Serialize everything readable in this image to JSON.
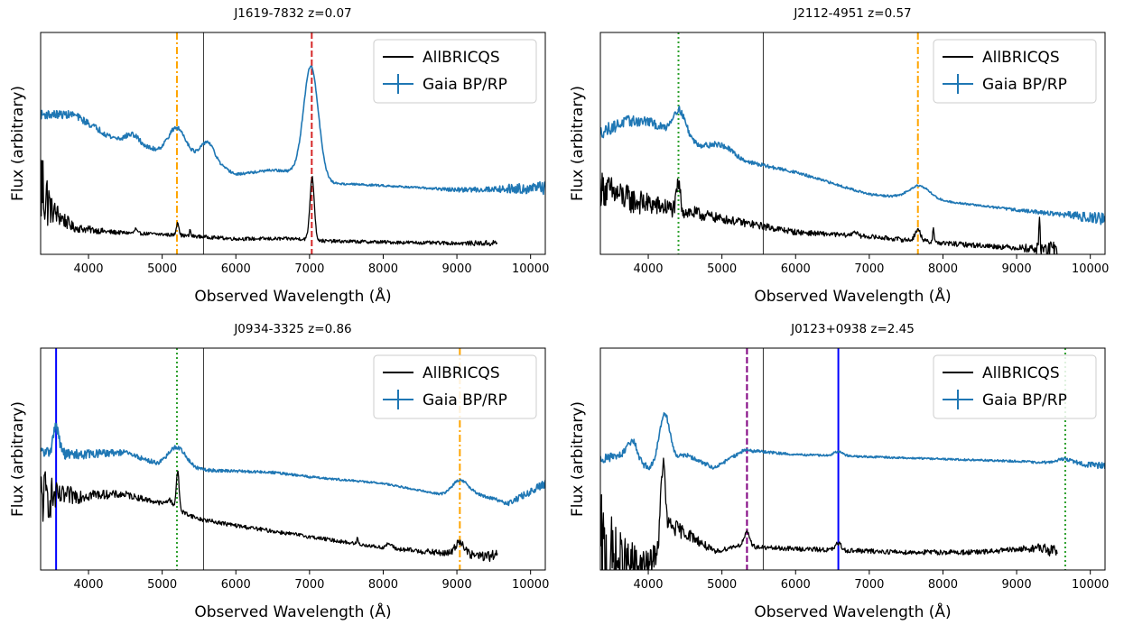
{
  "chart_data": [
    {
      "type": "line",
      "title": "J1619-7832 z=0.07",
      "xlabel": "Observed Wavelength (Å)",
      "ylabel": "Flux (arbitrary)",
      "xlim": [
        3350,
        10200
      ],
      "xticks": [
        4000,
        5000,
        6000,
        7000,
        8000,
        9000,
        10000
      ],
      "legend": {
        "position": "top-right",
        "entries": [
          "AllBRICQS",
          "Gaia BP/RP"
        ]
      },
      "series": [
        {
          "name": "AllBRICQS",
          "color": "#000000",
          "x_range": [
            3350,
            9550
          ],
          "continuum": [
            [
              3350,
              0.32
            ],
            [
              3500,
              0.2
            ],
            [
              3800,
              0.12
            ],
            [
              4300,
              0.1
            ],
            [
              5000,
              0.09
            ],
            [
              6000,
              0.07
            ],
            [
              6900,
              0.07
            ],
            [
              7200,
              0.06
            ],
            [
              8000,
              0.055
            ],
            [
              9000,
              0.05
            ],
            [
              9550,
              0.05
            ]
          ],
          "noise": [
            [
              3350,
              0.25
            ],
            [
              3500,
              0.06
            ],
            [
              3800,
              0.02
            ],
            [
              4500,
              0.008
            ],
            [
              9000,
              0.008
            ],
            [
              9550,
              0.015
            ]
          ],
          "features": [
            [
              5210,
              0.06,
              18
            ],
            [
              7035,
              0.28,
              30
            ],
            [
              4640,
              0.02,
              15
            ],
            [
              5380,
              0.03,
              8
            ]
          ]
        },
        {
          "name": "Gaia BP/RP",
          "color": "#1f77b4",
          "x_range": [
            3350,
            10200
          ],
          "continuum": [
            [
              3350,
              0.63
            ],
            [
              3800,
              0.63
            ],
            [
              4300,
              0.53
            ],
            [
              5000,
              0.46
            ],
            [
              5600,
              0.43
            ],
            [
              6000,
              0.36
            ],
            [
              6500,
              0.38
            ],
            [
              6800,
              0.37
            ],
            [
              7300,
              0.32
            ],
            [
              8000,
              0.31
            ],
            [
              9000,
              0.29
            ],
            [
              10200,
              0.3
            ]
          ],
          "noise": [
            [
              3350,
              0.02
            ],
            [
              4500,
              0.012
            ],
            [
              6000,
              0.006
            ],
            [
              8500,
              0.004
            ],
            [
              9500,
              0.015
            ],
            [
              10200,
              0.03
            ]
          ],
          "features": [
            [
              5200,
              0.12,
              120
            ],
            [
              5620,
              0.08,
              90
            ],
            [
              7020,
              0.5,
              100
            ],
            [
              4600,
              0.04,
              90
            ]
          ]
        }
      ],
      "vlines": [
        {
          "x": 5200,
          "color": "#ffa500",
          "style": "dashdot"
        },
        {
          "x": 5560,
          "color": "#000000",
          "style": "thin"
        },
        {
          "x": 7030,
          "color": "#d62728",
          "style": "dashed"
        }
      ]
    },
    {
      "type": "line",
      "title": "J2112-4951 z=0.57",
      "xlabel": "Observed Wavelength (Å)",
      "ylabel": "Flux (arbitrary)",
      "xlim": [
        3350,
        10200
      ],
      "xticks": [
        4000,
        5000,
        6000,
        7000,
        8000,
        9000,
        10000
      ],
      "legend": {
        "position": "top-right",
        "entries": [
          "AllBRICQS",
          "Gaia BP/RP"
        ]
      },
      "series": [
        {
          "name": "AllBRICQS",
          "color": "#000000",
          "x_range": [
            3350,
            9550
          ],
          "continuum": [
            [
              3350,
              0.3
            ],
            [
              3800,
              0.24
            ],
            [
              4400,
              0.2
            ],
            [
              5000,
              0.16
            ],
            [
              6000,
              0.1
            ],
            [
              7000,
              0.08
            ],
            [
              8000,
              0.05
            ],
            [
              9000,
              0.03
            ],
            [
              9550,
              0.02
            ]
          ],
          "noise": [
            [
              3350,
              0.08
            ],
            [
              4000,
              0.05
            ],
            [
              5000,
              0.02
            ],
            [
              6500,
              0.01
            ],
            [
              9000,
              0.012
            ],
            [
              9550,
              0.04
            ]
          ],
          "features": [
            [
              4410,
              0.12,
              25
            ],
            [
              7660,
              0.05,
              40
            ],
            [
              7870,
              0.07,
              10
            ],
            [
              9310,
              0.14,
              8
            ],
            [
              6800,
              0.02,
              30
            ]
          ]
        },
        {
          "name": "Gaia BP/RP",
          "color": "#1f77b4",
          "x_range": [
            3350,
            10200
          ],
          "continuum": [
            [
              3350,
              0.55
            ],
            [
              3700,
              0.6
            ],
            [
              4000,
              0.6
            ],
            [
              4300,
              0.55
            ],
            [
              5000,
              0.44
            ],
            [
              6000,
              0.37
            ],
            [
              7000,
              0.27
            ],
            [
              8000,
              0.24
            ],
            [
              9000,
              0.2
            ],
            [
              10200,
              0.16
            ]
          ],
          "noise": [
            [
              3350,
              0.03
            ],
            [
              4500,
              0.015
            ],
            [
              6000,
              0.006
            ],
            [
              8500,
              0.004
            ],
            [
              9500,
              0.01
            ],
            [
              10200,
              0.03
            ]
          ],
          "features": [
            [
              4420,
              0.12,
              90
            ],
            [
              5000,
              0.05,
              150
            ],
            [
              7680,
              0.06,
              140
            ]
          ]
        }
      ],
      "vlines": [
        {
          "x": 4410,
          "color": "#2ca02c",
          "style": "dotted"
        },
        {
          "x": 5560,
          "color": "#000000",
          "style": "thin"
        },
        {
          "x": 7660,
          "color": "#ffa500",
          "style": "dashdot"
        }
      ]
    },
    {
      "type": "line",
      "title": "J0934-3325 z=0.86",
      "xlabel": "Observed Wavelength (Å)",
      "ylabel": "Flux (arbitrary)",
      "xlim": [
        3350,
        10200
      ],
      "xticks": [
        4000,
        5000,
        6000,
        7000,
        8000,
        9000,
        10000
      ],
      "legend": {
        "position": "top-right",
        "entries": [
          "AllBRICQS",
          "Gaia BP/RP"
        ]
      },
      "series": [
        {
          "name": "AllBRICQS",
          "color": "#000000",
          "x_range": [
            3350,
            9550
          ],
          "continuum": [
            [
              3350,
              0.33
            ],
            [
              3600,
              0.33
            ],
            [
              4000,
              0.34
            ],
            [
              4500,
              0.34
            ],
            [
              5000,
              0.3
            ],
            [
              5500,
              0.23
            ],
            [
              6000,
              0.2
            ],
            [
              7000,
              0.15
            ],
            [
              8000,
              0.1
            ],
            [
              9000,
              0.07
            ],
            [
              9550,
              0.06
            ]
          ],
          "noise": [
            [
              3350,
              0.15
            ],
            [
              3600,
              0.05
            ],
            [
              4200,
              0.02
            ],
            [
              5000,
              0.01
            ],
            [
              8000,
              0.008
            ],
            [
              9300,
              0.02
            ],
            [
              9550,
              0.03
            ]
          ],
          "features": [
            [
              5210,
              0.17,
              20
            ],
            [
              5100,
              0.03,
              40
            ],
            [
              9040,
              0.06,
              60
            ],
            [
              8080,
              0.02,
              40
            ],
            [
              7650,
              0.03,
              8
            ]
          ]
        },
        {
          "name": "Gaia BP/RP",
          "color": "#1f77b4",
          "x_range": [
            3350,
            10200
          ],
          "continuum": [
            [
              3350,
              0.53
            ],
            [
              3800,
              0.52
            ],
            [
              4500,
              0.53
            ],
            [
              5000,
              0.47
            ],
            [
              5600,
              0.45
            ],
            [
              6500,
              0.44
            ],
            [
              7000,
              0.42
            ],
            [
              8000,
              0.39
            ],
            [
              8800,
              0.34
            ],
            [
              9200,
              0.35
            ],
            [
              9700,
              0.3
            ],
            [
              10200,
              0.39
            ]
          ],
          "noise": [
            [
              3350,
              0.03
            ],
            [
              4500,
              0.012
            ],
            [
              6000,
              0.006
            ],
            [
              8500,
              0.004
            ],
            [
              9500,
              0.008
            ],
            [
              10200,
              0.02
            ]
          ],
          "features": [
            [
              3560,
              0.12,
              40
            ],
            [
              5200,
              0.09,
              120
            ],
            [
              9040,
              0.06,
              100
            ]
          ]
        }
      ],
      "vlines": [
        {
          "x": 3560,
          "color": "#0000ff",
          "style": "solid"
        },
        {
          "x": 5200,
          "color": "#2ca02c",
          "style": "dotted"
        },
        {
          "x": 5560,
          "color": "#000000",
          "style": "thin"
        },
        {
          "x": 9040,
          "color": "#ffa500",
          "style": "dashdot"
        }
      ]
    },
    {
      "type": "line",
      "title": "J0123+0938 z=2.45",
      "xlabel": "Observed Wavelength (Å)",
      "ylabel": "Flux (arbitrary)",
      "xlim": [
        3350,
        10200
      ],
      "xticks": [
        4000,
        5000,
        6000,
        7000,
        8000,
        9000,
        10000
      ],
      "legend": {
        "position": "top-right",
        "entries": [
          "AllBRICQS",
          "Gaia BP/RP"
        ]
      },
      "series": [
        {
          "name": "AllBRICQS",
          "color": "#000000",
          "x_range": [
            3350,
            9550
          ],
          "continuum": [
            [
              3350,
              0.05
            ],
            [
              3700,
              0.02
            ],
            [
              4000,
              0.02
            ],
            [
              4150,
              0.1
            ],
            [
              4300,
              0.2
            ],
            [
              4600,
              0.15
            ],
            [
              4900,
              0.08
            ],
            [
              5200,
              0.11
            ],
            [
              5600,
              0.1
            ],
            [
              6500,
              0.09
            ],
            [
              7500,
              0.08
            ],
            [
              8500,
              0.08
            ],
            [
              9300,
              0.1
            ],
            [
              9550,
              0.08
            ]
          ],
          "noise": [
            [
              3350,
              0.3
            ],
            [
              3600,
              0.15
            ],
            [
              4000,
              0.06
            ],
            [
              4500,
              0.03
            ],
            [
              5000,
              0.01
            ],
            [
              9000,
              0.012
            ],
            [
              9550,
              0.03
            ]
          ],
          "features": [
            [
              4200,
              0.35,
              30
            ],
            [
              5340,
              0.06,
              40
            ],
            [
              6580,
              0.03,
              40
            ]
          ]
        },
        {
          "name": "Gaia BP/RP",
          "color": "#1f77b4",
          "x_range": [
            3350,
            10200
          ],
          "continuum": [
            [
              3350,
              0.5
            ],
            [
              3700,
              0.52
            ],
            [
              4000,
              0.46
            ],
            [
              4500,
              0.52
            ],
            [
              4900,
              0.46
            ],
            [
              5300,
              0.54
            ],
            [
              6000,
              0.52
            ],
            [
              7000,
              0.51
            ],
            [
              8000,
              0.5
            ],
            [
              9000,
              0.49
            ],
            [
              10200,
              0.47
            ]
          ],
          "noise": [
            [
              3350,
              0.02
            ],
            [
              4500,
              0.01
            ],
            [
              6000,
              0.005
            ],
            [
              8500,
              0.004
            ],
            [
              9500,
              0.006
            ],
            [
              10200,
              0.015
            ]
          ],
          "features": [
            [
              4220,
              0.22,
              70
            ],
            [
              3790,
              0.08,
              60
            ],
            [
              6580,
              0.02,
              60
            ],
            [
              9660,
              0.02,
              120
            ]
          ]
        }
      ],
      "vlines": [
        {
          "x": 5340,
          "color": "#800080",
          "style": "dashed"
        },
        {
          "x": 5560,
          "color": "#000000",
          "style": "thin"
        },
        {
          "x": 6580,
          "color": "#0000ff",
          "style": "solid"
        },
        {
          "x": 9660,
          "color": "#2ca02c",
          "style": "dotted"
        }
      ]
    }
  ]
}
